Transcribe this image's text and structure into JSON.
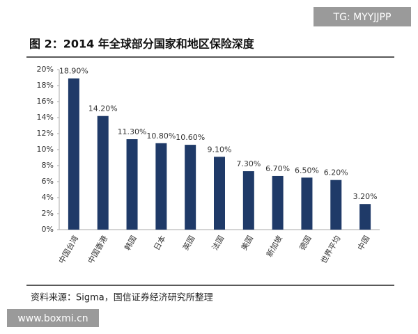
{
  "chart_data": {
    "type": "bar",
    "title": "图 2：2014 年全球部分国家和地区保险深度",
    "source": "资料来源：Sigma，国信证券经济研究所整理",
    "categories": [
      "中国台湾",
      "中国香港",
      "韩国",
      "日本",
      "英国",
      "法国",
      "美国",
      "新加坡",
      "德国",
      "世界平均",
      "中国"
    ],
    "values": [
      18.9,
      14.2,
      11.3,
      10.8,
      10.6,
      9.1,
      7.3,
      6.7,
      6.5,
      6.2,
      3.2
    ],
    "value_labels": [
      "18.90%",
      "14.20%",
      "11.30%",
      "10.80%",
      "10.60%",
      "9.10%",
      "7.30%",
      "6.70%",
      "6.50%",
      "6.20%",
      "3.20%"
    ],
    "color": "#1f3a68",
    "ylim": [
      0,
      20
    ],
    "yticks": [
      {
        "value": 0,
        "label": "0%"
      },
      {
        "value": 2,
        "label": "2%"
      },
      {
        "value": 4,
        "label": "4%"
      },
      {
        "value": 6,
        "label": "6%"
      },
      {
        "value": 8,
        "label": "8%"
      },
      {
        "value": 10,
        "label": "10%"
      },
      {
        "value": 12,
        "label": "12%"
      },
      {
        "value": 14,
        "label": "14%"
      },
      {
        "value": 16,
        "label": "16%"
      },
      {
        "value": 18,
        "label": "18%"
      },
      {
        "value": 20,
        "label": "20%"
      }
    ],
    "grid": false
  },
  "watermarks": [
    "TG: MYYJJPP",
    "www.boxmi.cn"
  ]
}
